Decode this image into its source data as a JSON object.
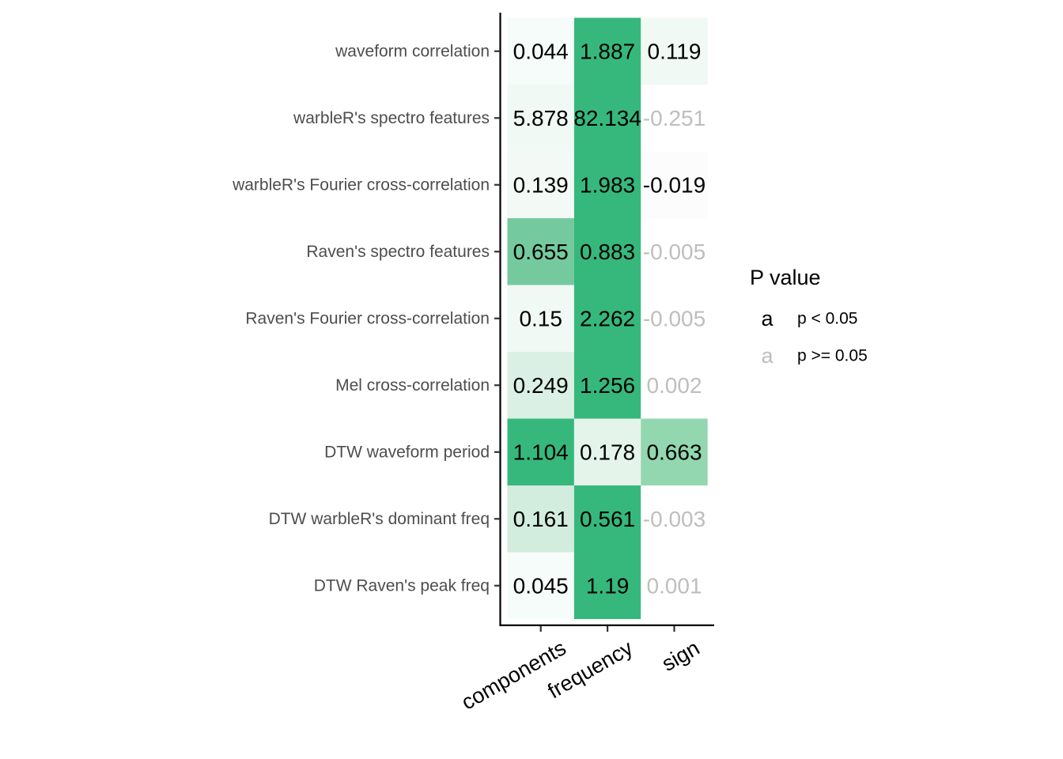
{
  "chart_data": {
    "type": "heatmap",
    "columns": [
      "components",
      "frequency",
      "sign"
    ],
    "rows": [
      "waveform correlation",
      "warbleR's spectro features",
      "warbleR's Fourier cross-correlation",
      "Raven's spectro features",
      "Raven's Fourier cross-correlation",
      "Mel cross-correlation",
      "DTW waveform period",
      "DTW warbleR's dominant freq",
      "DTW Raven's peak freq"
    ],
    "cells": [
      [
        {
          "label": "0.044",
          "significant": true,
          "fill": "#f6fcf9"
        },
        {
          "label": "1.887",
          "significant": true,
          "fill": "#36b87c"
        },
        {
          "label": "0.119",
          "significant": true,
          "fill": "#f1f9f5"
        }
      ],
      [
        {
          "label": "5.878",
          "significant": true,
          "fill": "#f1f9f5"
        },
        {
          "label": "82.134",
          "significant": true,
          "fill": "#36b87c"
        },
        {
          "label": "-0.251",
          "significant": false,
          "fill": "#ffffff"
        }
      ],
      [
        {
          "label": "0.139",
          "significant": true,
          "fill": "#f3faf6"
        },
        {
          "label": "1.983",
          "significant": true,
          "fill": "#36b87c"
        },
        {
          "label": "-0.019",
          "significant": true,
          "fill": "#fbfcfb"
        }
      ],
      [
        {
          "label": "0.655",
          "significant": true,
          "fill": "#74ca9e"
        },
        {
          "label": "0.883",
          "significant": true,
          "fill": "#36b87c"
        },
        {
          "label": "-0.005",
          "significant": false,
          "fill": "#ffffff"
        }
      ],
      [
        {
          "label": "0.15",
          "significant": true,
          "fill": "#f1f9f5"
        },
        {
          "label": "2.262",
          "significant": true,
          "fill": "#36b87c"
        },
        {
          "label": "-0.005",
          "significant": false,
          "fill": "#ffffff"
        }
      ],
      [
        {
          "label": "0.249",
          "significant": true,
          "fill": "#daf0e4"
        },
        {
          "label": "1.256",
          "significant": true,
          "fill": "#36b87c"
        },
        {
          "label": "0.002",
          "significant": false,
          "fill": "#ffffff"
        }
      ],
      [
        {
          "label": "1.104",
          "significant": true,
          "fill": "#36b87c"
        },
        {
          "label": "0.178",
          "significant": true,
          "fill": "#e4f4ea"
        },
        {
          "label": "0.663",
          "significant": true,
          "fill": "#93d7b0"
        }
      ],
      [
        {
          "label": "0.161",
          "significant": true,
          "fill": "#d2ecdd"
        },
        {
          "label": "0.561",
          "significant": true,
          "fill": "#36b87c"
        },
        {
          "label": "-0.003",
          "significant": false,
          "fill": "#ffffff"
        }
      ],
      [
        {
          "label": "0.045",
          "significant": true,
          "fill": "#f6fcf9"
        },
        {
          "label": "1.19",
          "significant": true,
          "fill": "#36b87c"
        },
        {
          "label": "0.001",
          "significant": false,
          "fill": "#ffffff"
        }
      ]
    ],
    "legend": {
      "title": "P value",
      "placement": "right",
      "key_glyph": "a",
      "items": [
        {
          "label": "p < 0.05",
          "color": "#000000"
        },
        {
          "label": "p >= 0.05",
          "color": "#bebebe"
        }
      ]
    },
    "text_colors": {
      "significant": "#000000",
      "not_significant": "#bebebe"
    },
    "xlabel": "",
    "ylabel": "",
    "grid": false
  }
}
